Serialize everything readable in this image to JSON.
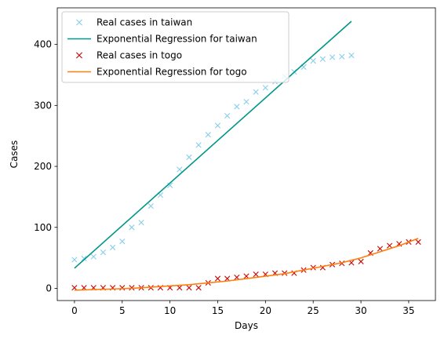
{
  "chart_data": {
    "type": "scatter",
    "xlabel": "Days",
    "ylabel": "Cases",
    "xlim": [
      -1.8,
      37.8
    ],
    "ylim": [
      -20,
      460
    ],
    "xticks": [
      0,
      5,
      10,
      15,
      20,
      25,
      30,
      35
    ],
    "yticks": [
      0,
      100,
      200,
      300,
      400
    ],
    "grid": false,
    "legend_position": "top-left",
    "legend": [
      "Real cases in taiwan",
      "Exponential Regression for taiwan",
      "Real cases in togo",
      "Exponential Regression for togo"
    ],
    "series": [
      {
        "name": "Real cases in taiwan",
        "kind": "markers",
        "marker": "x",
        "color": "#87ceeb",
        "x": [
          0,
          1,
          2,
          3,
          4,
          5,
          6,
          7,
          8,
          9,
          10,
          11,
          12,
          13,
          14,
          15,
          16,
          17,
          18,
          19,
          20,
          21,
          22,
          23,
          24,
          25,
          26,
          27,
          28,
          29
        ],
        "y": [
          47,
          49,
          52,
          59,
          67,
          77,
          100,
          108,
          135,
          153,
          169,
          195,
          215,
          235,
          252,
          267,
          283,
          298,
          306,
          322,
          329,
          339,
          348,
          355,
          363,
          373,
          376,
          379,
          380,
          382
        ]
      },
      {
        "name": "Exponential Regression for taiwan",
        "kind": "line",
        "color": "#009688",
        "x": [
          0,
          29
        ],
        "y": [
          33,
          438
        ]
      },
      {
        "name": "Real cases in togo",
        "kind": "markers",
        "marker": "x",
        "color": "#cc0000",
        "x": [
          0,
          1,
          2,
          3,
          4,
          5,
          6,
          7,
          8,
          9,
          10,
          11,
          12,
          13,
          14,
          15,
          16,
          17,
          18,
          19,
          20,
          21,
          22,
          23,
          24,
          25,
          26,
          27,
          28,
          29,
          30,
          31,
          32,
          33,
          34,
          35,
          36
        ],
        "y": [
          1,
          1,
          1,
          1,
          1,
          1,
          1,
          1,
          1,
          1,
          1,
          1,
          1,
          1,
          9,
          16,
          16,
          18,
          20,
          23,
          23,
          25,
          25,
          25,
          30,
          34,
          34,
          39,
          41,
          42,
          44,
          58,
          65,
          70,
          73,
          76,
          76
        ]
      },
      {
        "name": "Exponential Regression for togo",
        "kind": "line",
        "color": "#ff7f0e",
        "x": [
          0,
          2,
          4,
          6,
          8,
          10,
          12,
          14,
          16,
          18,
          20,
          22,
          24,
          26,
          28,
          30,
          32,
          34,
          36
        ],
        "y": [
          -3,
          -2,
          -1,
          0,
          2,
          4,
          6,
          9,
          12,
          16,
          20,
          24,
          30,
          36,
          42,
          50,
          60,
          70,
          82
        ]
      }
    ]
  }
}
